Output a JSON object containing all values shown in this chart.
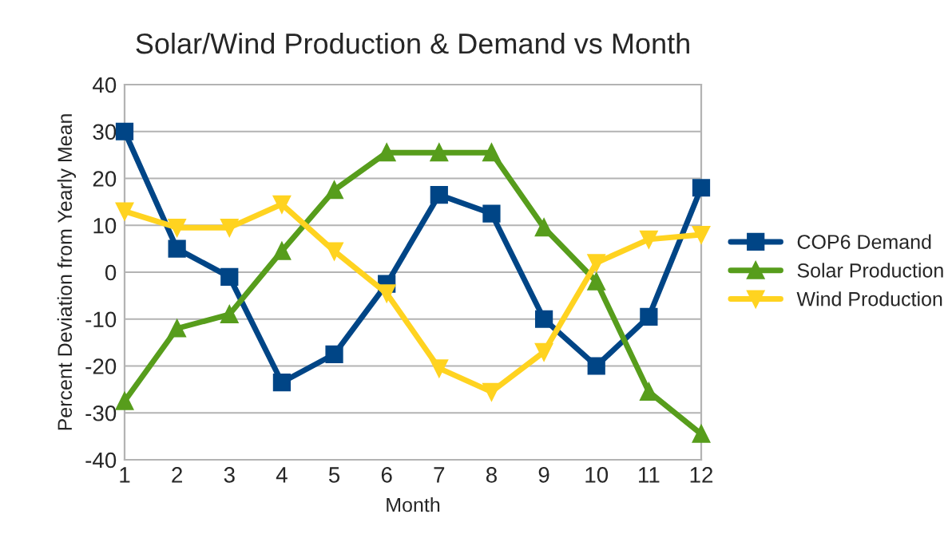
{
  "chart_data": {
    "type": "line",
    "title": "Solar/Wind Production & Demand vs Month",
    "xlabel": "Month",
    "ylabel": "Percent Deviation from Yearly Mean",
    "categories": [
      "1",
      "2",
      "3",
      "4",
      "5",
      "6",
      "7",
      "8",
      "9",
      "10",
      "11",
      "12"
    ],
    "series": [
      {
        "name": "COP6 Demand",
        "color": "#004586",
        "marker": "square",
        "values": [
          30,
          5,
          -1,
          -23.5,
          -17.5,
          -2.5,
          16.5,
          12.5,
          -10,
          -20,
          -9.5,
          18
        ]
      },
      {
        "name": "Solar Production",
        "color": "#579d1c",
        "marker": "triangle",
        "values": [
          -27.5,
          -12,
          -9,
          4.5,
          17.5,
          25.5,
          25.5,
          25.5,
          9.5,
          -2,
          -25.5,
          -34.5
        ]
      },
      {
        "name": "Wind Production",
        "color": "#ffd320",
        "marker": "triangle-down",
        "values": [
          13,
          9.5,
          9.5,
          14.5,
          4.5,
          -4.5,
          -20.5,
          -25.5,
          -17,
          2,
          7,
          8
        ]
      }
    ],
    "ylim": [
      -40,
      40
    ],
    "yticks": [
      -40,
      -30,
      -20,
      -10,
      0,
      10,
      20,
      30,
      40
    ],
    "grid": "y",
    "legend": "right",
    "line_style": "solid"
  }
}
